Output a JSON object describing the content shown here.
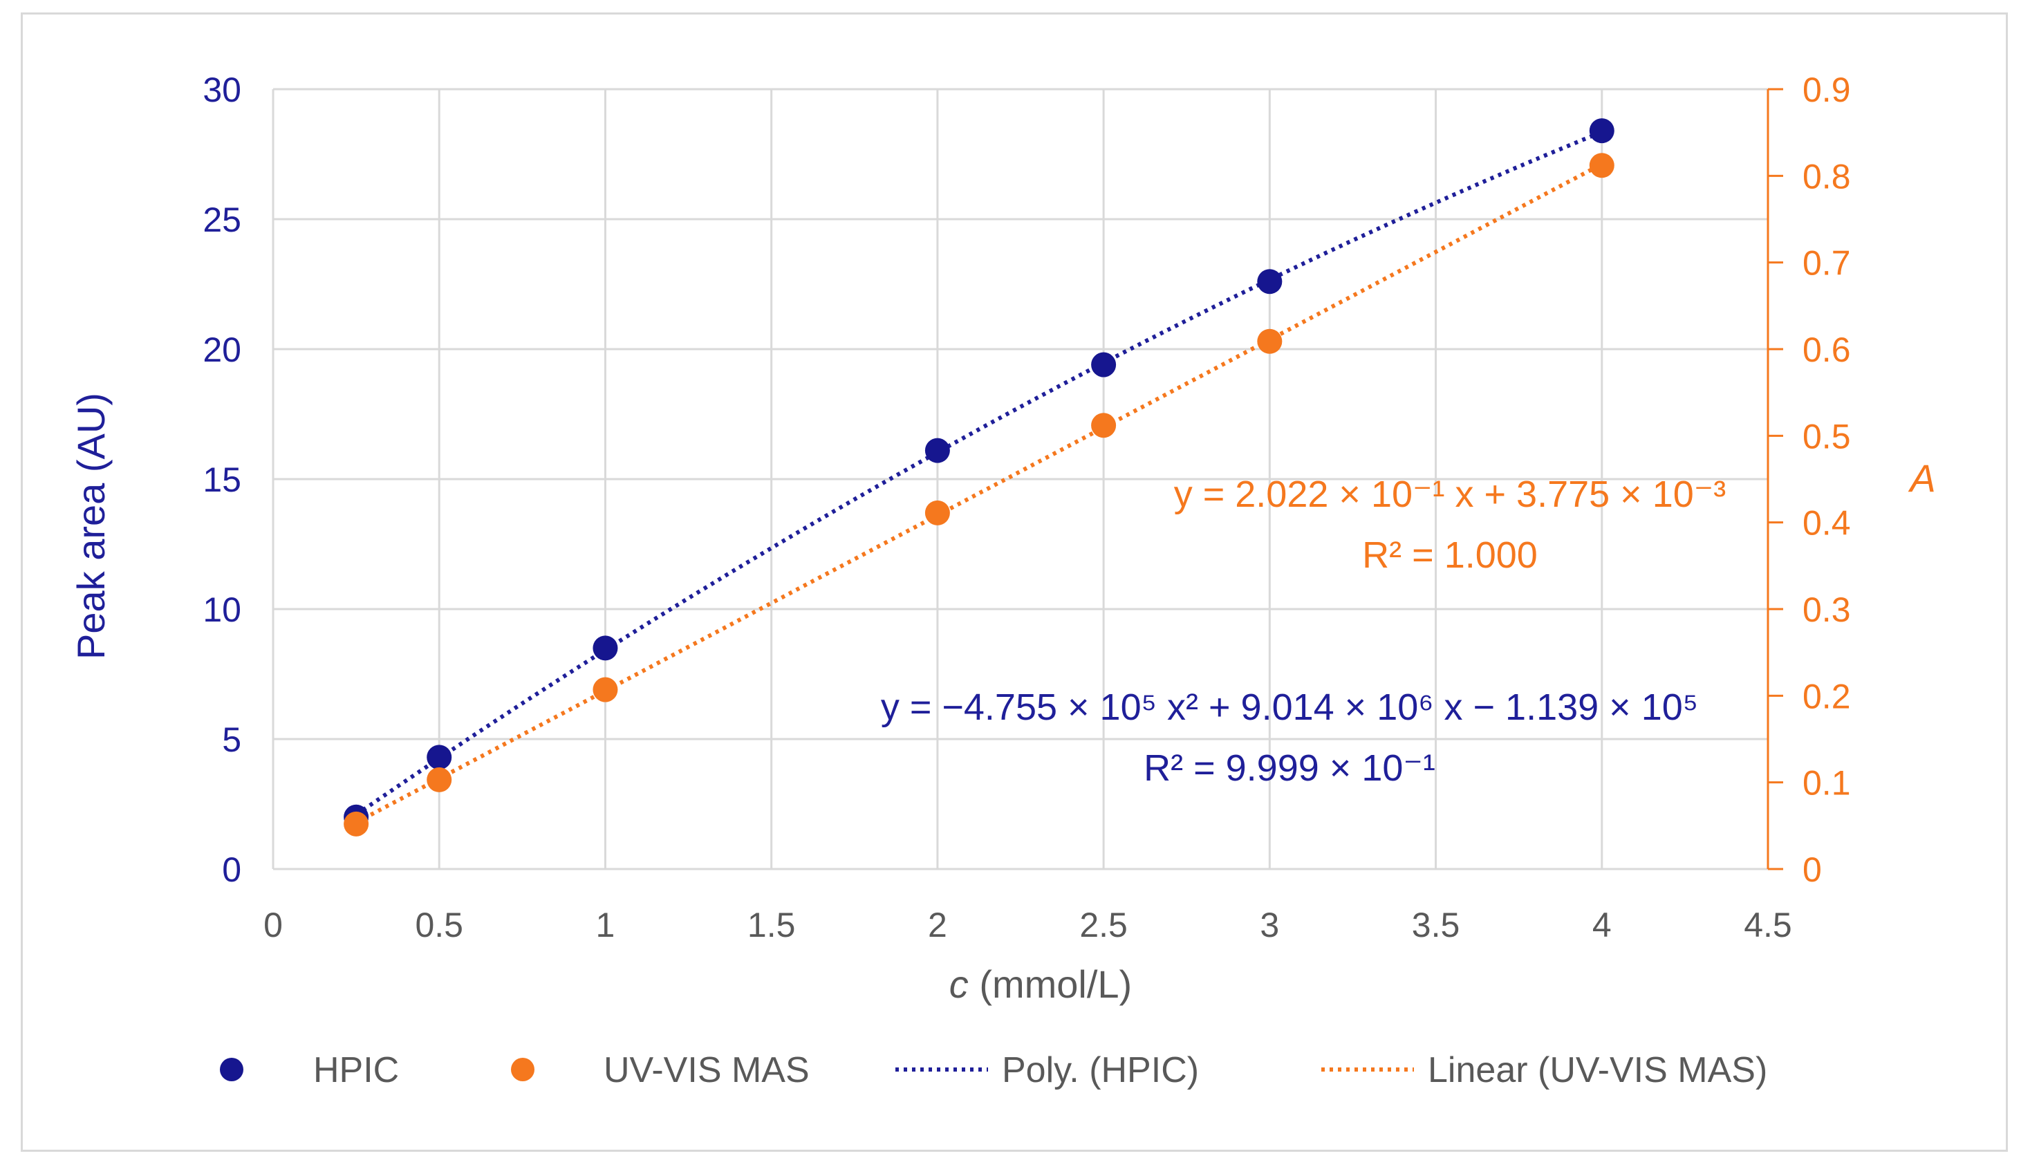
{
  "chart_data": {
    "type": "scatter",
    "xlabel": {
      "var": "c",
      "unit": " (mmol/L)"
    },
    "ylabel": "Peak area  (AU)",
    "y2label": "A",
    "xlim": [
      0,
      4.5
    ],
    "ylim": [
      0,
      30
    ],
    "y2lim": [
      0,
      0.9
    ],
    "x_ticks": [
      "0",
      "0.5",
      "1",
      "1.5",
      "2",
      "2.5",
      "3",
      "3.5",
      "4",
      "4.5"
    ],
    "y_ticks": [
      "0",
      "5",
      "10",
      "15",
      "20",
      "25",
      "30"
    ],
    "y2_ticks": [
      "0",
      "0.1",
      "0.2",
      "0.3",
      "0.4",
      "0.5",
      "0.6",
      "0.7",
      "0.8",
      "0.9"
    ],
    "grid": true,
    "series": [
      {
        "name": "HPIC",
        "axis": "left",
        "color": "#16168f",
        "x": [
          0.25,
          0.5,
          1,
          2,
          2.5,
          3,
          4
        ],
        "y": [
          2.0,
          4.3,
          8.5,
          16.1,
          19.4,
          22.6,
          28.4
        ]
      },
      {
        "name": "UV-VIS MAS",
        "axis": "right",
        "color": "#f5781e",
        "x": [
          0.25,
          0.5,
          1,
          2,
          2.5,
          3,
          4
        ],
        "y": [
          0.052,
          0.103,
          0.207,
          0.411,
          0.512,
          0.609,
          0.812
        ]
      }
    ],
    "trendlines": [
      {
        "name": "Poly. (HPIC)",
        "of": "HPIC",
        "kind": "polynomial",
        "order": 2,
        "color": "#1f1f99"
      },
      {
        "name": "Linear (UV-VIS MAS)",
        "of": "UV-VIS MAS",
        "kind": "linear",
        "color": "#f5781e"
      }
    ],
    "annotations": [
      {
        "series": "UV-VIS MAS",
        "equation": "y = 2.022 × 10⁻¹ x + 3.775 × 10⁻³",
        "r2": "R² = 1.000"
      },
      {
        "series": "HPIC",
        "equation": "y = −4.755 × 10⁵ x² + 9.014 × 10⁶ x − 1.139 × 10⁵",
        "r2": "R² = 9.999 × 10⁻¹"
      }
    ],
    "legend_position": "bottom"
  }
}
